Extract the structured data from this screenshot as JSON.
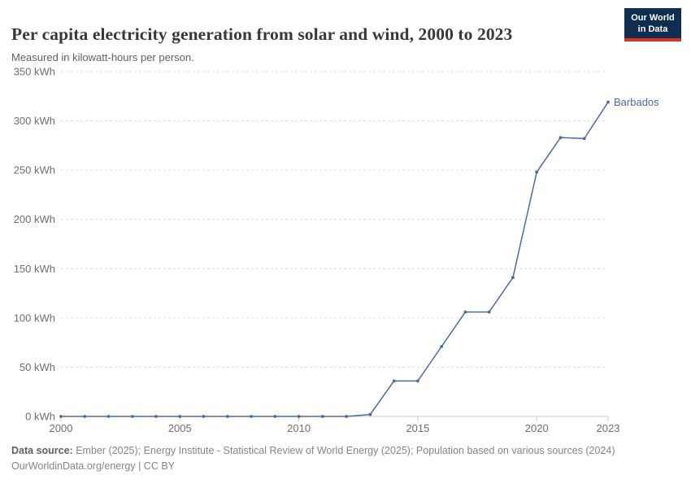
{
  "header": {
    "title": "Per capita electricity generation from solar and wind, 2000 to 2023",
    "subtitle": "Measured in kilowatt-hours per person.",
    "logo": {
      "line1": "Our World",
      "line2": "in Data",
      "bg_color": "#0e2d51",
      "bar_color": "#dc3022"
    }
  },
  "chart_data": {
    "type": "line",
    "title": "Per capita electricity generation from solar and wind, 2000 to 2023",
    "xlabel": "",
    "ylabel": "",
    "xlim": [
      2000,
      2023
    ],
    "ylim": [
      0,
      350
    ],
    "grid": "dashed-horizontal",
    "legend_position": "end-of-line-label",
    "x_ticks": [
      2000,
      2005,
      2010,
      2015,
      2020,
      2023
    ],
    "y_ticks": [
      0,
      50,
      100,
      150,
      200,
      250,
      300,
      350
    ],
    "y_tick_suffix": " kWh",
    "series": [
      {
        "name": "Barbados",
        "color": "#4c6a9c",
        "x": [
          2000,
          2001,
          2002,
          2003,
          2004,
          2005,
          2006,
          2007,
          2008,
          2009,
          2010,
          2011,
          2012,
          2013,
          2014,
          2015,
          2016,
          2017,
          2018,
          2019,
          2020,
          2021,
          2022,
          2023
        ],
        "values": [
          0,
          0,
          0,
          0,
          0,
          0,
          0,
          0,
          0,
          0,
          0,
          0,
          0,
          2,
          36,
          36,
          71,
          106,
          106,
          141,
          248,
          283,
          282,
          319
        ]
      }
    ],
    "colors": {
      "gridline": "#dcdcdc",
      "axis_line": "#c8c8c8",
      "tick_label": "#6e6e6e"
    }
  },
  "footer": {
    "source_label": "Data source:",
    "source_text": " Ember (2025); Energy Institute - Statistical Review of World Energy (2025); Population based on various sources (2024)",
    "link_line": "OurWorldinData.org/energy | CC BY"
  }
}
